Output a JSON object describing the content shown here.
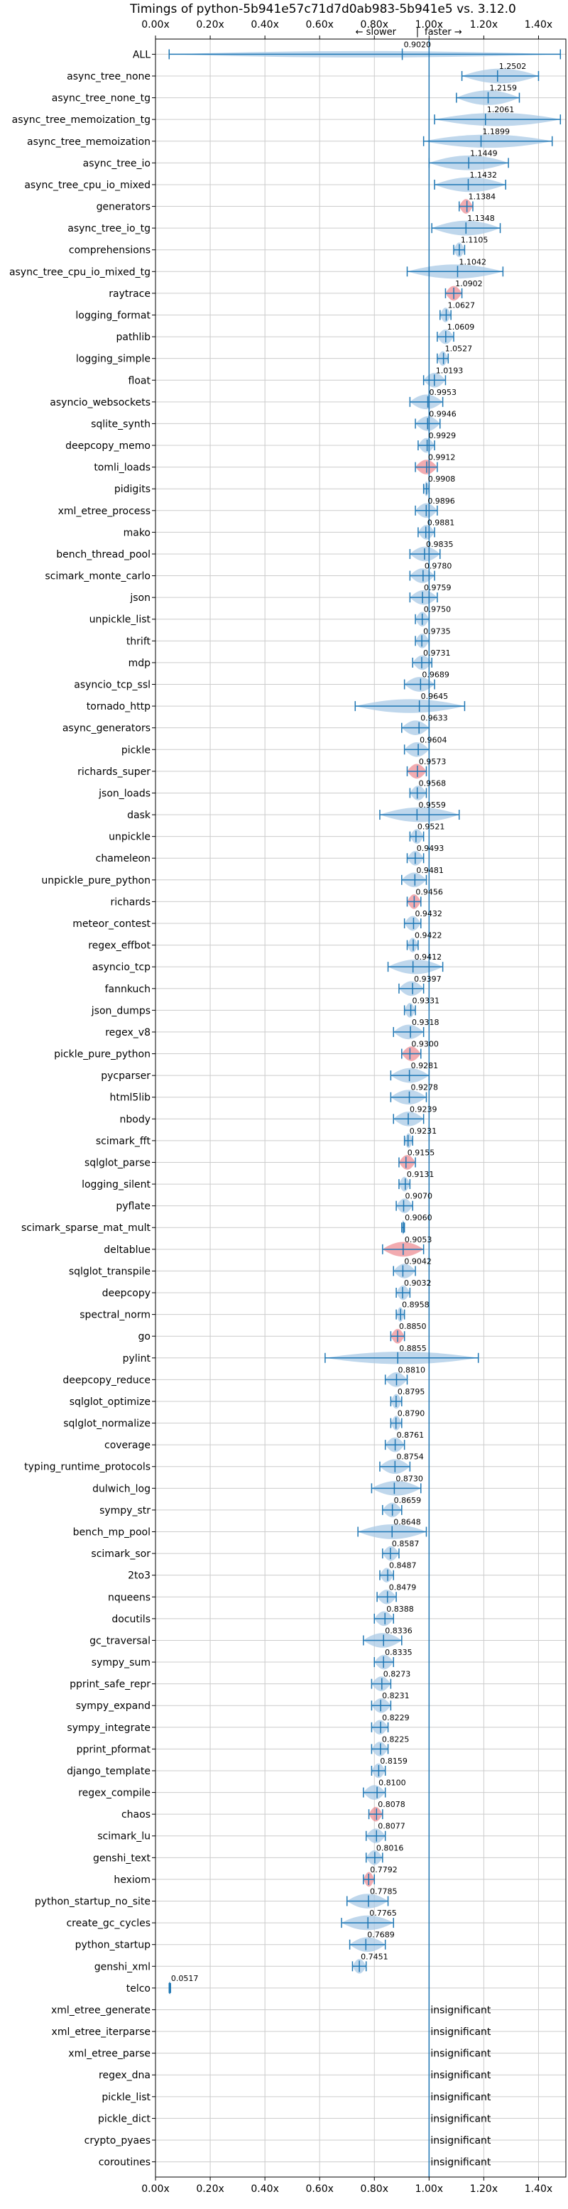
{
  "chart_data": {
    "type": "violin",
    "title": "Timings of python-5b941e57c71d7d0ab983-5b941e5 vs. 3.12.0",
    "direction_labels": {
      "slower": "← slower",
      "separator": "|",
      "faster": "faster →"
    },
    "xlim": [
      0.0,
      1.5
    ],
    "xticks": [
      0.0,
      0.2,
      0.4,
      0.6,
      0.8,
      1.0,
      1.2,
      1.4
    ],
    "xtick_labels": [
      "0.00x",
      "0.20x",
      "0.40x",
      "0.60x",
      "0.80x",
      "1.00x",
      "1.20x",
      "1.40x"
    ],
    "grid": true,
    "reference_line": 1.0,
    "insignificant_text": "insignificant",
    "benchmarks": [
      {
        "name": "ALL",
        "value": 0.902,
        "min": 0.05,
        "max": 1.48,
        "hl": false
      },
      {
        "name": "async_tree_none",
        "value": 1.2502,
        "min": 1.12,
        "max": 1.4,
        "hl": false
      },
      {
        "name": "async_tree_none_tg",
        "value": 1.2159,
        "min": 1.1,
        "max": 1.33,
        "hl": false
      },
      {
        "name": "async_tree_memoization_tg",
        "value": 1.2061,
        "min": 1.02,
        "max": 1.48,
        "hl": false
      },
      {
        "name": "async_tree_memoization",
        "value": 1.1899,
        "min": 0.98,
        "max": 1.45,
        "hl": false
      },
      {
        "name": "async_tree_io",
        "value": 1.1449,
        "min": 1.0,
        "max": 1.29,
        "hl": false
      },
      {
        "name": "async_tree_cpu_io_mixed",
        "value": 1.1432,
        "min": 1.02,
        "max": 1.28,
        "hl": false
      },
      {
        "name": "generators",
        "value": 1.1384,
        "min": 1.11,
        "max": 1.16,
        "hl": true
      },
      {
        "name": "async_tree_io_tg",
        "value": 1.1348,
        "min": 1.01,
        "max": 1.26,
        "hl": false
      },
      {
        "name": "comprehensions",
        "value": 1.1105,
        "min": 1.09,
        "max": 1.13,
        "hl": false
      },
      {
        "name": "async_tree_cpu_io_mixed_tg",
        "value": 1.1042,
        "min": 0.92,
        "max": 1.27,
        "hl": false
      },
      {
        "name": "raytrace",
        "value": 1.0902,
        "min": 1.06,
        "max": 1.12,
        "hl": true
      },
      {
        "name": "logging_format",
        "value": 1.0627,
        "min": 1.04,
        "max": 1.08,
        "hl": false
      },
      {
        "name": "pathlib",
        "value": 1.0609,
        "min": 1.03,
        "max": 1.09,
        "hl": false
      },
      {
        "name": "logging_simple",
        "value": 1.0527,
        "min": 1.03,
        "max": 1.07,
        "hl": false
      },
      {
        "name": "float",
        "value": 1.0193,
        "min": 0.98,
        "max": 1.06,
        "hl": false
      },
      {
        "name": "asyncio_websockets",
        "value": 0.9953,
        "min": 0.93,
        "max": 1.05,
        "hl": false
      },
      {
        "name": "sqlite_synth",
        "value": 0.9946,
        "min": 0.95,
        "max": 1.04,
        "hl": false
      },
      {
        "name": "deepcopy_memo",
        "value": 0.9929,
        "min": 0.96,
        "max": 1.02,
        "hl": false
      },
      {
        "name": "tomli_loads",
        "value": 0.9912,
        "min": 0.95,
        "max": 1.03,
        "hl": true
      },
      {
        "name": "pidigits",
        "value": 0.9908,
        "min": 0.98,
        "max": 1.0,
        "hl": false
      },
      {
        "name": "xml_etree_process",
        "value": 0.9896,
        "min": 0.95,
        "max": 1.03,
        "hl": false
      },
      {
        "name": "mako",
        "value": 0.9881,
        "min": 0.96,
        "max": 1.02,
        "hl": false
      },
      {
        "name": "bench_thread_pool",
        "value": 0.9835,
        "min": 0.93,
        "max": 1.04,
        "hl": false
      },
      {
        "name": "scimark_monte_carlo",
        "value": 0.978,
        "min": 0.93,
        "max": 1.02,
        "hl": false
      },
      {
        "name": "json",
        "value": 0.9759,
        "min": 0.93,
        "max": 1.03,
        "hl": false
      },
      {
        "name": "unpickle_list",
        "value": 0.975,
        "min": 0.95,
        "max": 1.0,
        "hl": false
      },
      {
        "name": "thrift",
        "value": 0.9735,
        "min": 0.95,
        "max": 1.0,
        "hl": false
      },
      {
        "name": "mdp",
        "value": 0.9731,
        "min": 0.94,
        "max": 1.01,
        "hl": false
      },
      {
        "name": "asyncio_tcp_ssl",
        "value": 0.9689,
        "min": 0.91,
        "max": 1.02,
        "hl": false
      },
      {
        "name": "tornado_http",
        "value": 0.9645,
        "min": 0.73,
        "max": 1.13,
        "hl": false
      },
      {
        "name": "async_generators",
        "value": 0.9633,
        "min": 0.9,
        "max": 1.0,
        "hl": false
      },
      {
        "name": "pickle",
        "value": 0.9604,
        "min": 0.91,
        "max": 1.0,
        "hl": false
      },
      {
        "name": "richards_super",
        "value": 0.9573,
        "min": 0.92,
        "max": 0.99,
        "hl": true
      },
      {
        "name": "json_loads",
        "value": 0.9568,
        "min": 0.93,
        "max": 0.99,
        "hl": false
      },
      {
        "name": "dask",
        "value": 0.9559,
        "min": 0.82,
        "max": 1.11,
        "hl": false
      },
      {
        "name": "unpickle",
        "value": 0.9521,
        "min": 0.93,
        "max": 0.98,
        "hl": false
      },
      {
        "name": "chameleon",
        "value": 0.9493,
        "min": 0.92,
        "max": 0.98,
        "hl": false
      },
      {
        "name": "unpickle_pure_python",
        "value": 0.9481,
        "min": 0.9,
        "max": 0.99,
        "hl": false
      },
      {
        "name": "richards",
        "value": 0.9456,
        "min": 0.92,
        "max": 0.97,
        "hl": true
      },
      {
        "name": "meteor_contest",
        "value": 0.9432,
        "min": 0.91,
        "max": 0.97,
        "hl": false
      },
      {
        "name": "regex_effbot",
        "value": 0.9422,
        "min": 0.92,
        "max": 0.96,
        "hl": false
      },
      {
        "name": "asyncio_tcp",
        "value": 0.9412,
        "min": 0.85,
        "max": 1.05,
        "hl": false
      },
      {
        "name": "fannkuch",
        "value": 0.9397,
        "min": 0.89,
        "max": 0.98,
        "hl": false
      },
      {
        "name": "json_dumps",
        "value": 0.9331,
        "min": 0.91,
        "max": 0.95,
        "hl": false
      },
      {
        "name": "regex_v8",
        "value": 0.9318,
        "min": 0.87,
        "max": 0.98,
        "hl": false
      },
      {
        "name": "pickle_pure_python",
        "value": 0.93,
        "min": 0.9,
        "max": 0.97,
        "hl": true
      },
      {
        "name": "pycparser",
        "value": 0.9281,
        "min": 0.86,
        "max": 1.0,
        "hl": false
      },
      {
        "name": "html5lib",
        "value": 0.9278,
        "min": 0.86,
        "max": 0.99,
        "hl": false
      },
      {
        "name": "nbody",
        "value": 0.9239,
        "min": 0.87,
        "max": 0.98,
        "hl": false
      },
      {
        "name": "scimark_fft",
        "value": 0.9231,
        "min": 0.91,
        "max": 0.94,
        "hl": false
      },
      {
        "name": "sqlglot_parse",
        "value": 0.9155,
        "min": 0.89,
        "max": 0.95,
        "hl": true
      },
      {
        "name": "logging_silent",
        "value": 0.9131,
        "min": 0.89,
        "max": 0.93,
        "hl": false
      },
      {
        "name": "pyflate",
        "value": 0.907,
        "min": 0.88,
        "max": 0.94,
        "hl": false
      },
      {
        "name": "scimark_sparse_mat_mult",
        "value": 0.906,
        "min": 0.9,
        "max": 0.91,
        "hl": false
      },
      {
        "name": "deltablue",
        "value": 0.9053,
        "min": 0.83,
        "max": 0.98,
        "hl": true
      },
      {
        "name": "sqlglot_transpile",
        "value": 0.9042,
        "min": 0.87,
        "max": 0.95,
        "hl": false
      },
      {
        "name": "deepcopy",
        "value": 0.9032,
        "min": 0.88,
        "max": 0.93,
        "hl": false
      },
      {
        "name": "spectral_norm",
        "value": 0.8958,
        "min": 0.88,
        "max": 0.91,
        "hl": false
      },
      {
        "name": "go",
        "value": 0.885,
        "min": 0.86,
        "max": 0.91,
        "hl": true
      },
      {
        "name": "pylint",
        "value": 0.8855,
        "min": 0.62,
        "max": 1.18,
        "hl": false
      },
      {
        "name": "deepcopy_reduce",
        "value": 0.881,
        "min": 0.84,
        "max": 0.92,
        "hl": false
      },
      {
        "name": "sqlglot_optimize",
        "value": 0.8795,
        "min": 0.86,
        "max": 0.9,
        "hl": false
      },
      {
        "name": "sqlglot_normalize",
        "value": 0.879,
        "min": 0.86,
        "max": 0.9,
        "hl": false
      },
      {
        "name": "coverage",
        "value": 0.8761,
        "min": 0.84,
        "max": 0.91,
        "hl": false
      },
      {
        "name": "typing_runtime_protocols",
        "value": 0.8754,
        "min": 0.82,
        "max": 0.93,
        "hl": false
      },
      {
        "name": "dulwich_log",
        "value": 0.873,
        "min": 0.79,
        "max": 0.97,
        "hl": false
      },
      {
        "name": "sympy_str",
        "value": 0.8659,
        "min": 0.83,
        "max": 0.9,
        "hl": false
      },
      {
        "name": "bench_mp_pool",
        "value": 0.8648,
        "min": 0.74,
        "max": 0.99,
        "hl": false
      },
      {
        "name": "scimark_sor",
        "value": 0.8587,
        "min": 0.83,
        "max": 0.89,
        "hl": false
      },
      {
        "name": "2to3",
        "value": 0.8487,
        "min": 0.82,
        "max": 0.87,
        "hl": false
      },
      {
        "name": "nqueens",
        "value": 0.8479,
        "min": 0.81,
        "max": 0.88,
        "hl": false
      },
      {
        "name": "docutils",
        "value": 0.8388,
        "min": 0.8,
        "max": 0.87,
        "hl": false
      },
      {
        "name": "gc_traversal",
        "value": 0.8336,
        "min": 0.76,
        "max": 0.9,
        "hl": false
      },
      {
        "name": "sympy_sum",
        "value": 0.8335,
        "min": 0.8,
        "max": 0.87,
        "hl": false
      },
      {
        "name": "pprint_safe_repr",
        "value": 0.8273,
        "min": 0.79,
        "max": 0.86,
        "hl": false
      },
      {
        "name": "sympy_expand",
        "value": 0.8231,
        "min": 0.79,
        "max": 0.86,
        "hl": false
      },
      {
        "name": "sympy_integrate",
        "value": 0.8229,
        "min": 0.79,
        "max": 0.85,
        "hl": false
      },
      {
        "name": "pprint_pformat",
        "value": 0.8225,
        "min": 0.79,
        "max": 0.85,
        "hl": false
      },
      {
        "name": "django_template",
        "value": 0.8159,
        "min": 0.79,
        "max": 0.84,
        "hl": false
      },
      {
        "name": "regex_compile",
        "value": 0.81,
        "min": 0.76,
        "max": 0.84,
        "hl": false
      },
      {
        "name": "chaos",
        "value": 0.8078,
        "min": 0.78,
        "max": 0.83,
        "hl": true
      },
      {
        "name": "scimark_lu",
        "value": 0.8077,
        "min": 0.77,
        "max": 0.84,
        "hl": false
      },
      {
        "name": "genshi_text",
        "value": 0.8016,
        "min": 0.77,
        "max": 0.83,
        "hl": false
      },
      {
        "name": "hexiom",
        "value": 0.7792,
        "min": 0.76,
        "max": 0.8,
        "hl": true
      },
      {
        "name": "python_startup_no_site",
        "value": 0.7785,
        "min": 0.7,
        "max": 0.85,
        "hl": false
      },
      {
        "name": "create_gc_cycles",
        "value": 0.7765,
        "min": 0.68,
        "max": 0.87,
        "hl": false
      },
      {
        "name": "python_startup",
        "value": 0.7689,
        "min": 0.71,
        "max": 0.84,
        "hl": false
      },
      {
        "name": "genshi_xml",
        "value": 0.7451,
        "min": 0.72,
        "max": 0.77,
        "hl": false
      },
      {
        "name": "telco",
        "value": 0.0517,
        "min": 0.05,
        "max": 0.055,
        "hl": false
      },
      {
        "name": "xml_etree_generate",
        "insignificant": true
      },
      {
        "name": "xml_etree_iterparse",
        "insignificant": true
      },
      {
        "name": "xml_etree_parse",
        "insignificant": true
      },
      {
        "name": "regex_dna",
        "insignificant": true
      },
      {
        "name": "pickle_list",
        "insignificant": true
      },
      {
        "name": "pickle_dict",
        "insignificant": true
      },
      {
        "name": "crypto_pyaes",
        "insignificant": true
      },
      {
        "name": "coroutines",
        "insignificant": true
      }
    ]
  },
  "colors": {
    "violin_fill": "#a9c9e6",
    "violin_line": "#1f77b4",
    "highlight": "#e8666f",
    "grid": "#cccccc",
    "axis": "#000000",
    "reference": "#1f77b4"
  }
}
